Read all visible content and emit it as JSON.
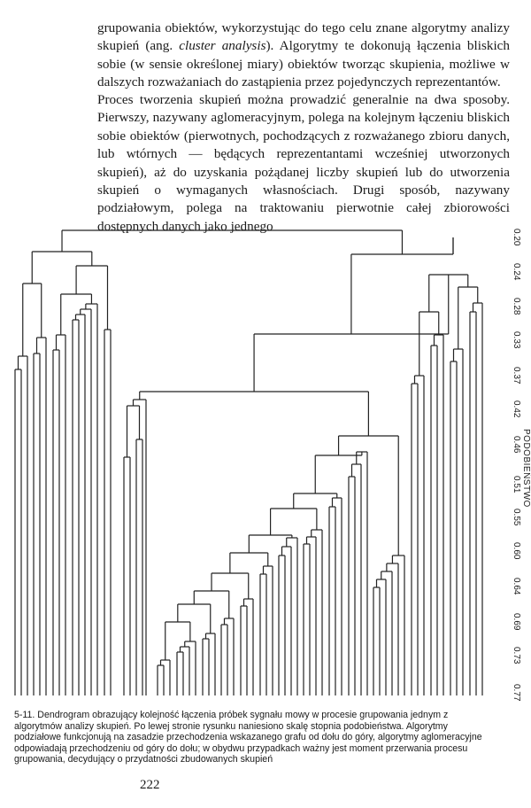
{
  "text": {
    "p1_part1": "grupowania obiektów, wykorzystując do tego celu znane algorytmy analizy skupień (ang. ",
    "p1_italic": "cluster analysis",
    "p1_part2": "). Algorytmy te dokonują łączenia bliskich sobie (w sensie określonej miary) obiektów tworząc skupienia, możliwe w dalszych rozważaniach do zastąpienia przez pojedynczych reprezentantów.",
    "p2": "Proces tworzenia skupień można prowadzić generalnie na dwa sposoby. Pierwszy, nazywany aglomeracyjnym, polega na kolejnym łączeniu bliskich sobie obiektów (pierwotnych, pochodzących z rozważanego zbioru danych, lub wtórnych — będących reprezentantami wcześniej utworzonych skupień), aż do uzyskania pożądanej liczby skupień lub do utworzenia skupień o wymaganych własnościach. Drugi sposób, nazywany podziałowym, polega na traktowaniu pierwotnie całej zbiorowości dostępnych danych jako jednego"
  },
  "figure": {
    "axis_title": "PODOBIEŃSTWO",
    "axis_ticks": [
      "0.20",
      "0.24",
      "0.28",
      "0.33",
      "0.37",
      "0.42",
      "0.46",
      "0.51",
      "0.55",
      "0.60",
      "0.64",
      "0.69",
      "0.73",
      "0.77"
    ],
    "caption": "5-11. Dendrogram obrazujący kolejność łączenia próbek sygnału mowy w procesie grupowania jednym z algorytmów analizy skupień. Po lewej stronie rysunku naniesiono skalę stopnia podobieństwa. Algorytmy podziałowe funkcjonują na zasadzie przechodzenia wskazanego grafu od dołu do góry, algorytmy aglomeracyjne odpowiadają przechodzeniu od góry do dołu; w obydwu przypadkach ważny jest moment przerwania procesu grupowania, decydujący o przydatności zbudowanych skupień"
  },
  "page_number": "222"
}
